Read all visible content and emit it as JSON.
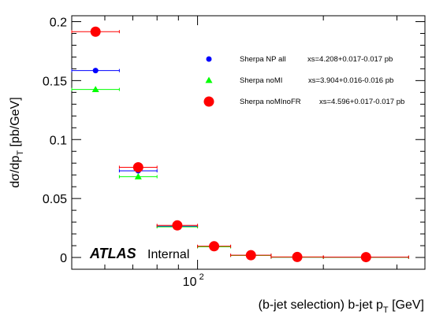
{
  "chart_data": {
    "type": "scatter",
    "xscale": "log",
    "xlim": [
      50,
      350
    ],
    "ylim": [
      -0.01,
      0.205
    ],
    "xlabel": "(b-jet selection) b-jet p_T [GeV]",
    "ylabel": "dσ/dp_T [pb/GeV]",
    "yticks": [
      {
        "value": 0,
        "label": "0"
      },
      {
        "value": 0.05,
        "label": "0.05"
      },
      {
        "value": 0.1,
        "label": "0.1"
      },
      {
        "value": 0.15,
        "label": "0.15"
      },
      {
        "value": 0.2,
        "label": "0.2"
      }
    ],
    "xticks_major": [
      {
        "value": 100,
        "label": "10",
        "exponent": "2"
      }
    ],
    "grid": false,
    "legend_position": "top-right",
    "atlas_label": "ATLAS",
    "atlas_status": "Internal",
    "bins": [
      [
        50,
        65
      ],
      [
        65,
        80
      ],
      [
        80,
        100
      ],
      [
        100,
        120
      ],
      [
        120,
        150
      ],
      [
        150,
        200
      ],
      [
        200,
        320
      ]
    ],
    "series": [
      {
        "name": "Sherpa NP all",
        "xs": "xs=4.208+0.017-0.017 pb",
        "color": "#0000ff",
        "marker": "circle",
        "values": [
          0.1585,
          0.0735,
          0.0265,
          0.0092,
          0.0018,
          0.0003,
          0.0002
        ]
      },
      {
        "name": "Sherpa noMI",
        "xs": "xs=3.904+0.016-0.016 pb",
        "color": "#00ff00",
        "marker": "triangle",
        "values": [
          0.1425,
          0.0685,
          0.026,
          0.009,
          0.0017,
          0.0002,
          0.0001
        ]
      },
      {
        "name": "Sherpa noMInoFR",
        "xs": "xs=4.596+0.017-0.017 pb",
        "color": "#ff0000",
        "marker": "circle-large",
        "values": [
          0.1915,
          0.0765,
          0.0272,
          0.0095,
          0.0019,
          0.0004,
          0.0003
        ]
      }
    ]
  }
}
